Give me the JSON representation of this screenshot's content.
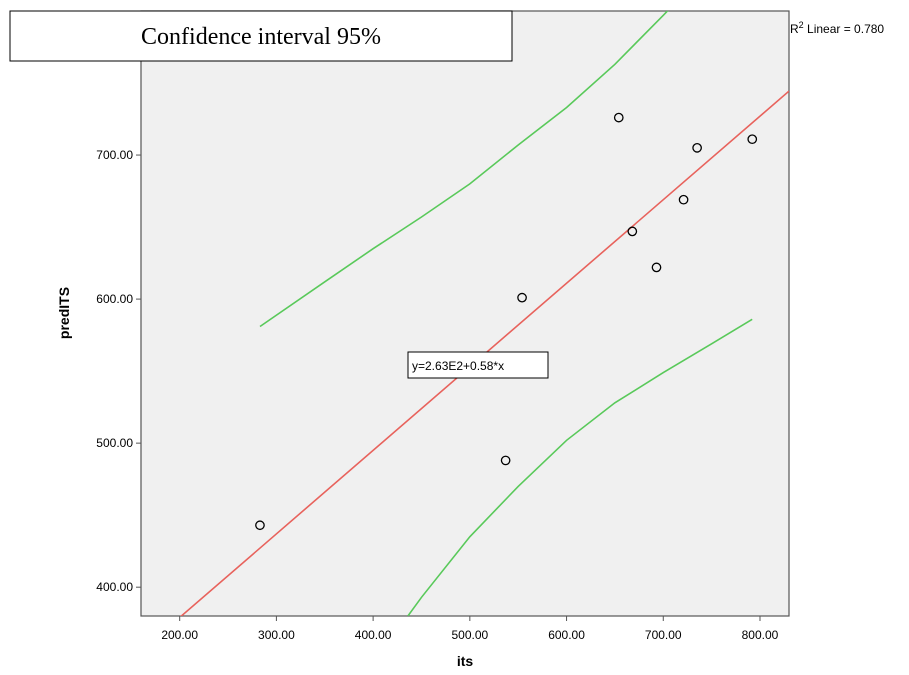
{
  "chart_data": {
    "type": "scatter",
    "title": "Confidence interval 95%",
    "xlabel": "its",
    "ylabel": "predITS",
    "xlim": [
      160,
      830
    ],
    "ylim": [
      380,
      800
    ],
    "x_ticks": [
      200,
      300,
      400,
      500,
      600,
      700,
      800
    ],
    "x_tick_labels": [
      "200.00",
      "300.00",
      "400.00",
      "500.00",
      "600.00",
      "700.00",
      "800.00"
    ],
    "y_ticks": [
      400,
      500,
      600,
      700
    ],
    "y_tick_labels": [
      "400.00",
      "500.00",
      "600.00",
      "700.00"
    ],
    "grid": false,
    "points": [
      {
        "x": 283,
        "y": 443
      },
      {
        "x": 537,
        "y": 488
      },
      {
        "x": 554,
        "y": 601
      },
      {
        "x": 654,
        "y": 726
      },
      {
        "x": 668,
        "y": 647
      },
      {
        "x": 693,
        "y": 622
      },
      {
        "x": 721,
        "y": 669
      },
      {
        "x": 735,
        "y": 705
      },
      {
        "x": 792,
        "y": 711
      }
    ],
    "fit_line": {
      "intercept": 263,
      "slope": 0.58,
      "label": "y=2.63E2+0.58*x",
      "color": "#e8625c"
    },
    "r2_label": {
      "prefix": "R",
      "sup": "2",
      "suffix": " Linear = 0.780"
    },
    "ci_upper": {
      "color": "#59c95a",
      "x": [
        283,
        350,
        400,
        450,
        500,
        550,
        600,
        650,
        700,
        750
      ],
      "y": [
        581,
        612,
        635,
        657,
        680,
        707,
        733,
        763,
        797,
        832
      ]
    },
    "ci_lower": {
      "color": "#59c95a",
      "x": [
        436,
        450,
        500,
        550,
        600,
        650,
        700,
        750,
        792
      ],
      "y": [
        380,
        393,
        435,
        470,
        502,
        528,
        549,
        569,
        586
      ]
    },
    "colors": {
      "plot_bg": "#f0f0f0",
      "frame": "#555555",
      "points": "#000000"
    }
  }
}
